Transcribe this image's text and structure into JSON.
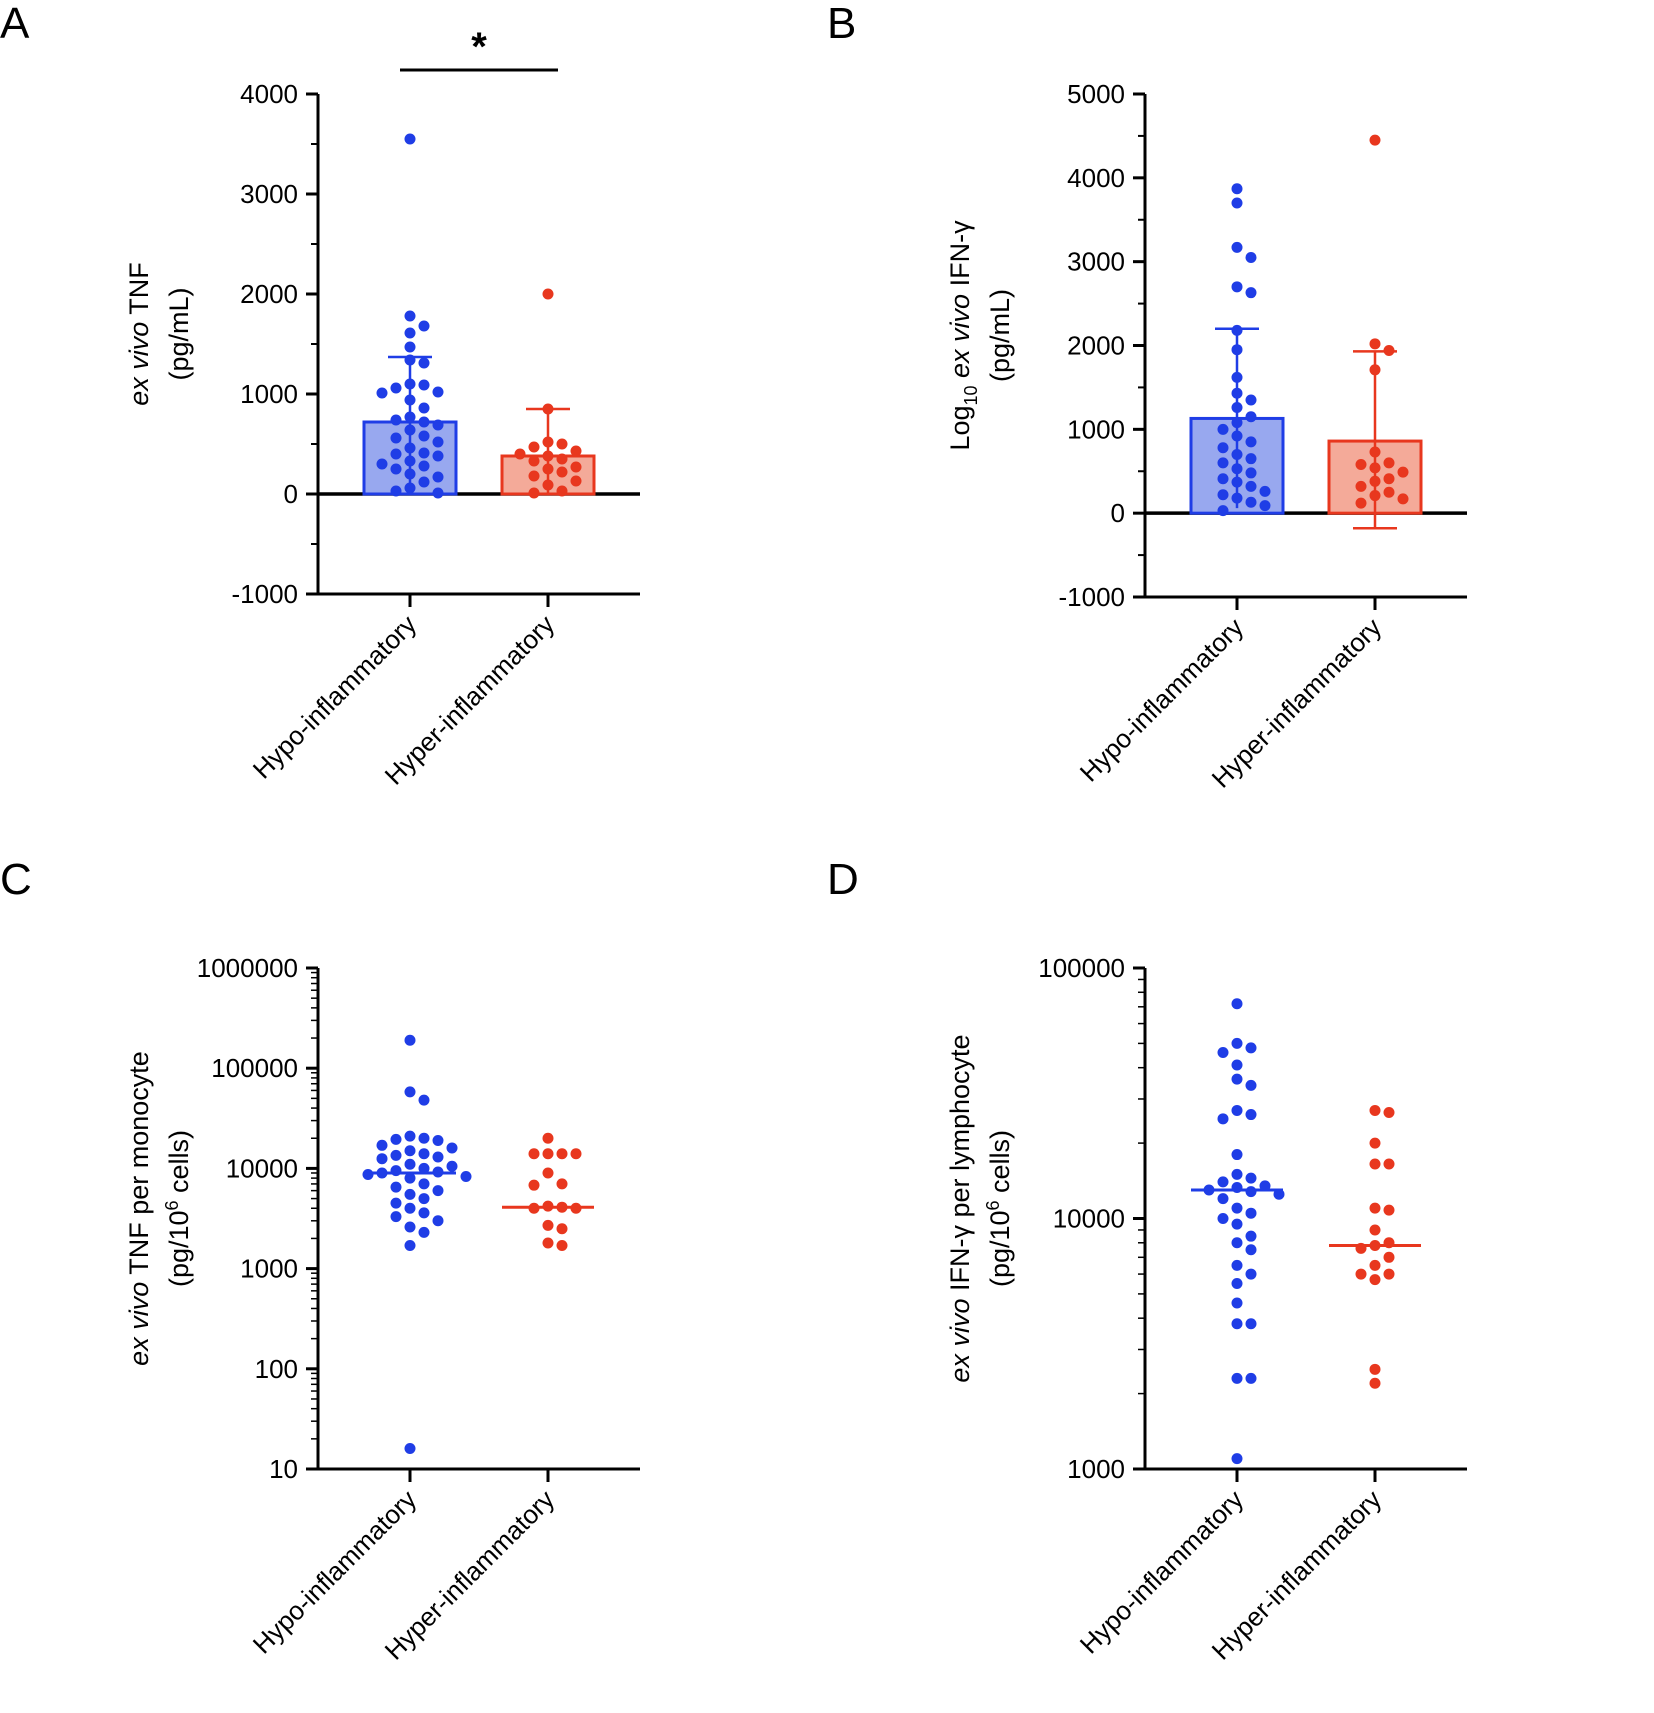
{
  "colors": {
    "hypo": "#1f3de6",
    "hyper": "#e8371e",
    "hypo_fill": "#98a8ef",
    "hyper_fill": "#f4aa99",
    "axis": "#000000"
  },
  "chart_data": [
    {
      "panel": "A",
      "type": "bar",
      "scale": "linear",
      "ylabel_italic": "ex vivo",
      "ylabel_rest": " TNF",
      "ylabel_unit": "(pg/mL)",
      "categories": [
        "Hypo-inflammatory",
        "Hyper-inflammatory"
      ],
      "ylim": [
        -1000,
        4000
      ],
      "yticks": [
        -1000,
        0,
        1000,
        2000,
        3000,
        4000
      ],
      "ytick_labels": [
        "-1000",
        "0",
        "1000",
        "2000",
        "3000",
        "4000"
      ],
      "minor_step": 500,
      "baseline": 0,
      "significance": "*",
      "series": [
        {
          "name": "Hypo-inflammatory",
          "mean": 720,
          "err_low": 0,
          "err_high": 1370,
          "points": [
            3550,
            1780,
            1680,
            1610,
            1470,
            1340,
            1310,
            1100,
            1090,
            1060,
            1020,
            1010,
            940,
            860,
            770,
            740,
            720,
            690,
            640,
            580,
            560,
            520,
            460,
            410,
            400,
            380,
            330,
            300,
            280,
            250,
            200,
            170,
            120,
            60,
            30,
            10
          ]
        },
        {
          "name": "Hyper-inflammatory",
          "mean": 380,
          "err_low": 0,
          "err_high": 850,
          "points": [
            2000,
            850,
            520,
            500,
            470,
            430,
            400,
            380,
            350,
            330,
            270,
            250,
            220,
            180,
            130,
            90,
            30,
            10
          ]
        }
      ]
    },
    {
      "panel": "B",
      "type": "bar",
      "scale": "linear",
      "ylabel_pre": "Log",
      "ylabel_sub": "10",
      "ylabel_italic": "ex vivo",
      "ylabel_rest": " IFN-γ",
      "ylabel_unit": "(pg/mL)",
      "categories": [
        "Hypo-inflammatory",
        "Hyper-inflammatory"
      ],
      "ylim": [
        -1000,
        5000
      ],
      "yticks": [
        -1000,
        0,
        1000,
        2000,
        3000,
        4000,
        5000
      ],
      "ytick_labels": [
        "-1000",
        "0",
        "1000",
        "2000",
        "3000",
        "4000",
        "5000"
      ],
      "minor_step": 500,
      "baseline": 0,
      "significance": "",
      "series": [
        {
          "name": "Hypo-inflammatory",
          "mean": 1130,
          "err_low": 60,
          "err_high": 2200,
          "points": [
            3870,
            3700,
            3170,
            3050,
            2700,
            2630,
            2180,
            1950,
            1620,
            1430,
            1350,
            1260,
            1150,
            1080,
            1000,
            920,
            850,
            780,
            700,
            650,
            600,
            530,
            480,
            410,
            370,
            320,
            260,
            220,
            180,
            130,
            90,
            30
          ]
        },
        {
          "name": "Hyper-inflammatory",
          "mean": 860,
          "err_low": -180,
          "err_high": 1930,
          "points": [
            4450,
            2020,
            1940,
            1710,
            730,
            600,
            580,
            540,
            490,
            410,
            380,
            320,
            250,
            210,
            170,
            120
          ]
        }
      ]
    },
    {
      "panel": "C",
      "type": "scatter",
      "scale": "log",
      "ylabel_italic": "ex vivo",
      "ylabel_rest": " TNF per monocyte",
      "ylabel_unit_pre": "(pg/10",
      "ylabel_unit_sup": "6",
      "ylabel_unit_post": " cells)",
      "categories": [
        "Hypo-inflammatory",
        "Hyper-inflammatory"
      ],
      "ylim": [
        10,
        1000000
      ],
      "yticks": [
        10,
        100,
        1000,
        10000,
        100000,
        1000000
      ],
      "ytick_labels": [
        "10",
        "100",
        "1000",
        "10000",
        "100000",
        "1000000"
      ],
      "series": [
        {
          "name": "Hypo-inflammatory",
          "median": 9000,
          "points": [
            190000,
            58000,
            48000,
            21000,
            20000,
            19500,
            19000,
            17000,
            16000,
            15000,
            14000,
            13500,
            13000,
            12500,
            11000,
            10500,
            10000,
            9500,
            9200,
            9000,
            8700,
            8300,
            8000,
            7000,
            6500,
            6000,
            5500,
            5000,
            4500,
            4000,
            3600,
            3300,
            3000,
            2600,
            2300,
            1700,
            16
          ]
        },
        {
          "name": "Hyper-inflammatory",
          "median": 4100,
          "points": [
            20000,
            14000,
            14000,
            14000,
            14000,
            9000,
            7000,
            6800,
            4200,
            4100,
            4000,
            4000,
            2700,
            2500,
            1800,
            1700
          ]
        }
      ]
    },
    {
      "panel": "D",
      "type": "scatter",
      "scale": "log",
      "ylabel_italic": "ex vivo",
      "ylabel_rest": " IFN-γ per lymphocyte",
      "ylabel_unit_pre": "(pg/10",
      "ylabel_unit_sup": "6",
      "ylabel_unit_post": " cells)",
      "categories": [
        "Hypo-inflammatory",
        "Hyper-inflammatory"
      ],
      "ylim": [
        1000,
        100000
      ],
      "yticks": [
        1000,
        10000,
        100000
      ],
      "ytick_labels": [
        "1000",
        "10000",
        "100000"
      ],
      "series": [
        {
          "name": "Hypo-inflammatory",
          "median": 13000,
          "points": [
            72000,
            50000,
            48000,
            46000,
            41000,
            36000,
            34000,
            27000,
            26000,
            25000,
            18000,
            15000,
            14500,
            14000,
            13500,
            13300,
            13000,
            12800,
            12500,
            12000,
            11000,
            10500,
            10000,
            9500,
            8500,
            8000,
            7500,
            6500,
            6000,
            5500,
            4600,
            3800,
            3800,
            2300,
            2300,
            1100
          ]
        },
        {
          "name": "Hyper-inflammatory",
          "median": 7800,
          "points": [
            27000,
            26500,
            20000,
            16500,
            16500,
            11000,
            10800,
            9000,
            8000,
            7800,
            7600,
            7000,
            6500,
            6000,
            6000,
            5700,
            2500,
            2200
          ]
        }
      ]
    }
  ],
  "panels": [
    {
      "letter": "A"
    },
    {
      "letter": "B"
    },
    {
      "letter": "C"
    },
    {
      "letter": "D"
    }
  ]
}
